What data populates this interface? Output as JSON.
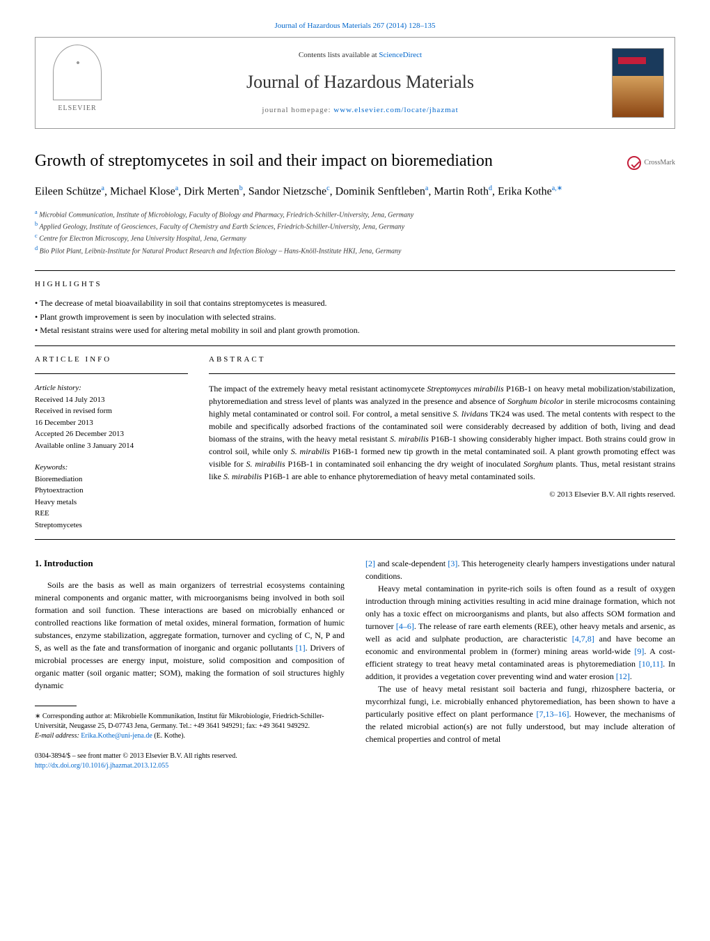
{
  "header": {
    "citation_link": "Journal of Hazardous Materials 267 (2014) 128–135",
    "contents_prefix": "Contents lists available at ",
    "contents_link": "ScienceDirect",
    "journal_title": "Journal of Hazardous Materials",
    "homepage_prefix": "journal homepage: ",
    "homepage_link": "www.elsevier.com/locate/jhazmat",
    "publisher_name": "ELSEVIER"
  },
  "article": {
    "title": "Growth of streptomycetes in soil and their impact on bioremediation",
    "crossmark_label": "CrossMark",
    "authors_html": "Eileen Schütze<sup>a</sup>, Michael Klose<sup>a</sup>, Dirk Merten<sup>b</sup>, Sandor Nietzsche<sup>c</sup>, Dominik Senftleben<sup>a</sup>, Martin Roth<sup>d</sup>, Erika Kothe<sup>a,∗</sup>",
    "affiliations": [
      {
        "sup": "a",
        "text": "Microbial Communication, Institute of Microbiology, Faculty of Biology and Pharmacy, Friedrich-Schiller-University, Jena, Germany"
      },
      {
        "sup": "b",
        "text": "Applied Geology, Institute of Geosciences, Faculty of Chemistry and Earth Sciences, Friedrich-Schiller-University, Jena, Germany"
      },
      {
        "sup": "c",
        "text": "Centre for Electron Microscopy, Jena University Hospital, Jena, Germany"
      },
      {
        "sup": "d",
        "text": "Bio Pilot Plant, Leibniz-Institute for Natural Product Research and Infection Biology – Hans-Knöll-Institute HKI, Jena, Germany"
      }
    ]
  },
  "highlights": {
    "label": "HIGHLIGHTS",
    "items": [
      "The decrease of metal bioavailability in soil that contains streptomycetes is measured.",
      "Plant growth improvement is seen by inoculation with selected strains.",
      "Metal resistant strains were used for altering metal mobility in soil and plant growth promotion."
    ]
  },
  "article_info": {
    "label": "ARTICLE INFO",
    "history_label": "Article history:",
    "history": [
      "Received 14 July 2013",
      "Received in revised form",
      "16 December 2013",
      "Accepted 26 December 2013",
      "Available online 3 January 2014"
    ],
    "keywords_label": "Keywords:",
    "keywords": [
      "Bioremediation",
      "Phytoextraction",
      "Heavy metals",
      "REE",
      "Streptomycetes"
    ]
  },
  "abstract": {
    "label": "ABSTRACT",
    "text": "The impact of the extremely heavy metal resistant actinomycete <em>Streptomyces mirabilis</em> P16B-1 on heavy metal mobilization/stabilization, phytoremediation and stress level of plants was analyzed in the presence and absence of <em>Sorghum bicolor</em> in sterile microcosms containing highly metal contaminated or control soil. For control, a metal sensitive <em>S. lividans</em> TK24 was used. The metal contents with respect to the mobile and specifically adsorbed fractions of the contaminated soil were considerably decreased by addition of both, living and dead biomass of the strains, with the heavy metal resistant <em>S. mirabilis</em> P16B-1 showing considerably higher impact. Both strains could grow in control soil, while only <em>S. mirabilis</em> P16B-1 formed new tip growth in the metal contaminated soil. A plant growth promoting effect was visible for <em>S. mirabilis</em> P16B-1 in contaminated soil enhancing the dry weight of inoculated <em>Sorghum</em> plants. Thus, metal resistant strains like <em>S. mirabilis</em> P16B-1 are able to enhance phytoremediation of heavy metal contaminated soils.",
    "copyright": "© 2013 Elsevier B.V. All rights reserved."
  },
  "intro": {
    "heading": "1.  Introduction",
    "col1_p1": "Soils are the basis as well as main organizers of terrestrial ecosystems containing mineral components and organic matter, with microorganisms being involved in both soil formation and soil function. These interactions are based on microbially enhanced or controlled reactions like formation of metal oxides, mineral formation, formation of humic substances, enzyme stabilization, aggregate formation, turnover and cycling of C, N, P and S, as well as the fate and transformation of inorganic and organic pollutants <a>[1]</a>. Drivers of microbial processes are energy input, moisture, solid composition and composition of organic matter (soil organic matter; SOM), making the formation of soil structures highly dynamic",
    "col2_p1": "<a>[2]</a> and scale-dependent <a>[3]</a>. This heterogeneity clearly hampers investigations under natural conditions.",
    "col2_p2": "Heavy metal contamination in pyrite-rich soils is often found as a result of oxygen introduction through mining activities resulting in acid mine drainage formation, which not only has a toxic effect on microorganisms and plants, but also affects SOM formation and turnover <a>[4–6]</a>. The release of rare earth elements (REE), other heavy metals and arsenic, as well as acid and sulphate production, are characteristic <a>[4,7,8]</a> and have become an economic and environmental problem in (former) mining areas world-wide <a>[9]</a>. A cost-efficient strategy to treat heavy metal contaminated areas is phytoremediation <a>[10,11]</a>. In addition, it provides a vegetation cover preventing wind and water erosion <a>[12]</a>.",
    "col2_p3": "The use of heavy metal resistant soil bacteria and fungi, rhizosphere bacteria, or mycorrhizal fungi, i.e. microbially enhanced phytoremediation, has been shown to have a particularly positive effect on plant performance <a>[7,13–16]</a>. However, the mechanisms of the related microbial action(s) are not fully understood, but may include alteration of chemical properties and control of metal"
  },
  "footnotes": {
    "corresponding": "∗ Corresponding author at: Mikrobielle Kommunikation, Institut für Mikrobiologie, Friedrich-Schiller-Universität, Neugasse 25, D-07743 Jena, Germany. Tel.: +49 3641 949291; fax: +49 3641 949292.",
    "email_label": "E-mail address: ",
    "email_link": "Erika.Kothe@uni-jena.de",
    "email_suffix": " (E. Kothe)."
  },
  "footer": {
    "issn_line": "0304-3894/$ – see front matter © 2013 Elsevier B.V. All rights reserved.",
    "doi_link": "http://dx.doi.org/10.1016/j.jhazmat.2013.12.055"
  },
  "colors": {
    "link": "#0066cc",
    "text": "#000000",
    "muted": "#666666",
    "crossmark_red": "#c41e3a"
  }
}
